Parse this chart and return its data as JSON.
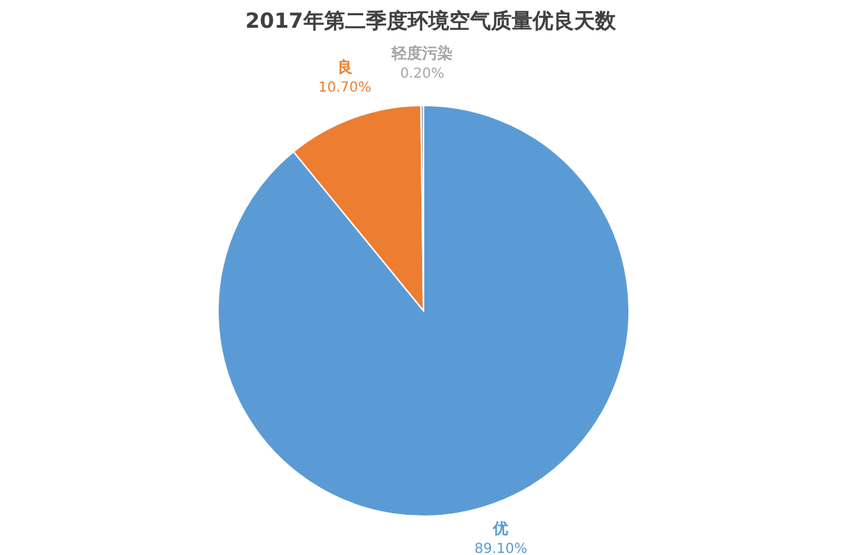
{
  "chart_data": {
    "type": "pie",
    "title": "2017年第二季度环境空气质量优良天数",
    "categories": [
      "优",
      "良",
      "轻度污染"
    ],
    "values": [
      89.1,
      10.7,
      0.2
    ],
    "value_labels": [
      "89.10%",
      "10.70%",
      "0.20%"
    ],
    "colors": [
      "#5b9bd5",
      "#ed7d31",
      "#a5a5a5"
    ]
  }
}
